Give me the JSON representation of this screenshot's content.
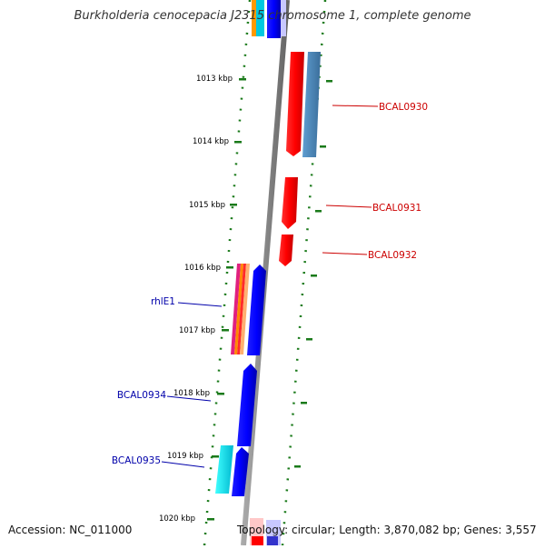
{
  "title": "Burkholderia cenocepacia J2315 chromosome 1, complete genome",
  "footer": {
    "accession": "Accession: NC_011000",
    "topology": "Topology: circular; Length: 3,870,082 bp; Genes: 3,557"
  },
  "ticks": [
    "1013 kbp",
    "1014 kbp",
    "1015 kbp",
    "1016 kbp",
    "1017 kbp",
    "1018 kbp",
    "1019 kbp",
    "1020 kbp"
  ],
  "gene_labels": {
    "bcal0930": "BCAL0930",
    "bcal0931": "BCAL0931",
    "bcal0932": "BCAL0932",
    "rhle1": "rhlE1",
    "bcal0934": "BCAL0934",
    "bcal0935": "BCAL0935"
  },
  "colors": {
    "forward_strand": "#ff0000",
    "reverse_strand": "#0000ff",
    "forward_label": "#cc0000",
    "reverse_label": "#0000aa",
    "tick": "#1a7a1a",
    "backbone": "#888888"
  }
}
